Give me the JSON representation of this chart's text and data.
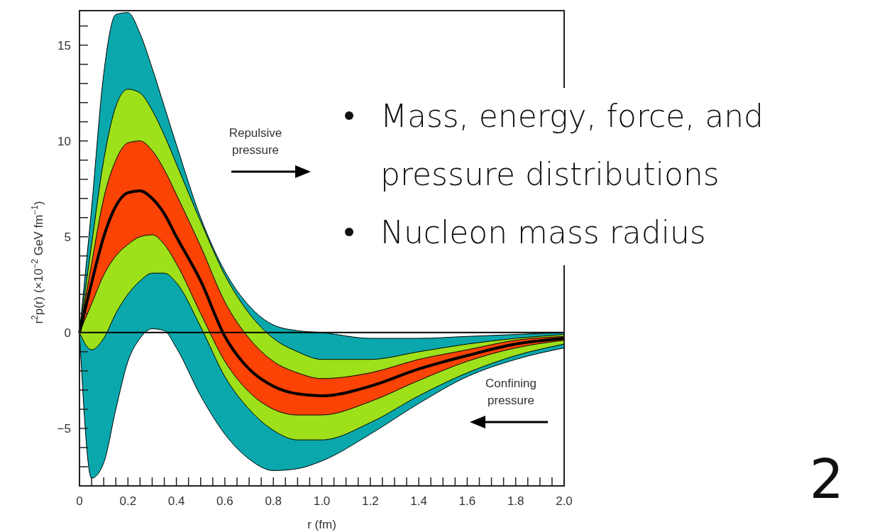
{
  "chart_data": {
    "type": "line",
    "xlabel": "r (fm)",
    "ylabel": "r$^{2}$p(r) (×10$^{−2}$ GeV fm$^{−1}$)",
    "x": [
      0,
      0.05,
      0.1,
      0.15,
      0.2,
      0.25,
      0.3,
      0.35,
      0.4,
      0.5,
      0.6,
      0.7,
      0.8,
      0.9,
      1.0,
      1.2,
      1.4,
      1.6,
      1.8,
      2.0
    ],
    "series": [
      {
        "color": "#0aa8ad",
        "values": [
          null,
          null,
          null,
          null,
          null,
          null,
          null,
          null,
          null,
          null,
          null,
          null,
          null,
          null,
          null,
          null,
          null,
          null,
          null,
          null
        ],
        "upper": [
          0,
          6.5,
          13.5,
          16.6,
          16.7,
          15.6,
          13.8,
          11.8,
          9.8,
          6.0,
          3.2,
          1.4,
          0.4,
          0.1,
          0.0,
          -0.3,
          -0.3,
          -0.2,
          -0.1,
          0
        ],
        "lower": [
          0,
          -7.6,
          -6.8,
          -4.0,
          -1.5,
          -0.3,
          0.2,
          0.1,
          -0.8,
          -3.3,
          -5.3,
          -6.6,
          -7.2,
          -7.1,
          -6.7,
          -5.3,
          -3.7,
          -2.3,
          -1.4,
          -0.8
        ]
      },
      {
        "color": "#9ee01a",
        "values": [
          null,
          null,
          null,
          null,
          null,
          null,
          null,
          null,
          null,
          null,
          null,
          null,
          null,
          null,
          null,
          null,
          null,
          null,
          null,
          null
        ],
        "upper": [
          0,
          4.6,
          9.0,
          11.8,
          12.7,
          12.5,
          11.6,
          10.3,
          8.8,
          5.8,
          3.0,
          1.0,
          -0.3,
          -1.0,
          -1.4,
          -1.4,
          -1.0,
          -0.6,
          -0.3,
          -0.1
        ],
        "lower": [
          0,
          -0.9,
          -0.3,
          1.0,
          2.0,
          2.7,
          3.1,
          3.1,
          2.6,
          0.3,
          -2.3,
          -4.0,
          -5.1,
          -5.6,
          -5.6,
          -4.7,
          -3.3,
          -2.1,
          -1.2,
          -0.6
        ]
      },
      {
        "color": "#fa4305",
        "values": [
          null,
          null,
          null,
          null,
          null,
          null,
          null,
          null,
          null,
          null,
          null,
          null,
          null,
          null,
          null,
          null,
          null,
          null,
          null,
          null
        ],
        "upper": [
          0,
          3.6,
          7.0,
          9.0,
          9.9,
          10.0,
          9.5,
          8.5,
          7.2,
          4.5,
          1.6,
          -0.3,
          -1.5,
          -2.1,
          -2.4,
          -2.1,
          -1.4,
          -0.9,
          -0.4,
          -0.2
        ],
        "lower": [
          0,
          1.5,
          3.0,
          4.0,
          4.6,
          5.0,
          5.1,
          4.6,
          3.6,
          1.0,
          -1.5,
          -3.1,
          -4.0,
          -4.3,
          -4.3,
          -3.6,
          -2.5,
          -1.5,
          -0.8,
          -0.4
        ]
      },
      {
        "color": "#000000",
        "values": [
          0,
          2.6,
          5.0,
          6.6,
          7.3,
          7.4,
          7.0,
          6.2,
          5.0,
          2.7,
          -0.2,
          -1.9,
          -2.8,
          -3.2,
          -3.3,
          -2.8,
          -1.9,
          -1.2,
          -0.6,
          -0.3
        ]
      }
    ],
    "xlim": [
      0,
      2.0
    ],
    "ylim": [
      -8.0,
      16.8
    ],
    "xticks": [
      0,
      {
        "value": 0.05,
        "label": null
      },
      {
        "value": 0.1,
        "label": null
      },
      {
        "value": 0.15,
        "label": null
      },
      0.2,
      {
        "value": 0.25,
        "label": null
      },
      {
        "value": 0.3,
        "label": null
      },
      {
        "value": 0.35,
        "label": null
      },
      0.4,
      {
        "value": 0.45,
        "label": null
      },
      {
        "value": 0.5,
        "label": null
      },
      {
        "value": 0.55,
        "label": null
      },
      0.6,
      {
        "value": 0.65,
        "label": null
      },
      {
        "value": 0.7,
        "label": null
      },
      {
        "value": 0.75,
        "label": null
      },
      0.8,
      {
        "value": 0.85,
        "label": null
      },
      {
        "value": 0.9,
        "label": null
      },
      {
        "value": 0.95,
        "label": null
      },
      {
        "value": 1.0,
        "label": "1.0"
      },
      {
        "value": 1.05,
        "label": null
      },
      {
        "value": 1.1,
        "label": null
      },
      {
        "value": 1.15,
        "label": null
      },
      1.2,
      {
        "value": 1.25,
        "label": null
      },
      {
        "value": 1.3,
        "label": null
      },
      {
        "value": 1.35,
        "label": null
      },
      1.4,
      {
        "value": 1.45,
        "label": null
      },
      {
        "value": 1.5,
        "label": null
      },
      {
        "value": 1.55,
        "label": null
      },
      1.6,
      {
        "value": 1.65,
        "label": null
      },
      {
        "value": 1.7,
        "label": null
      },
      {
        "value": 1.75,
        "label": null
      },
      1.8,
      {
        "value": 1.85,
        "label": null
      },
      {
        "value": 1.9,
        "label": null
      },
      {
        "value": 1.95,
        "label": null
      },
      {
        "value": 2.0,
        "label": "2.0"
      }
    ],
    "yticks": [
      {
        "value": -8,
        "label": null
      },
      {
        "value": -7,
        "label": null
      },
      {
        "value": -6,
        "label": null
      },
      {
        "value": -5,
        "label": "−5"
      },
      {
        "value": -4,
        "label": null
      },
      {
        "value": -3,
        "label": null
      },
      {
        "value": -2,
        "label": null
      },
      {
        "value": -1,
        "label": null
      },
      0,
      {
        "value": 1,
        "label": null
      },
      {
        "value": 2,
        "label": null
      },
      {
        "value": 3,
        "label": null
      },
      {
        "value": 4,
        "label": null
      },
      5,
      {
        "value": 6,
        "label": null
      },
      {
        "value": 7,
        "label": null
      },
      {
        "value": 8,
        "label": null
      },
      {
        "value": 9,
        "label": null
      },
      10,
      {
        "value": 11,
        "label": null
      },
      {
        "value": 12,
        "label": null
      },
      {
        "value": 13,
        "label": null
      },
      {
        "value": 14,
        "label": null
      },
      15,
      {
        "value": 16,
        "label": null
      }
    ],
    "ref_lines": [
      {
        "axis": "y",
        "value": 0,
        "color": "#000000"
      }
    ],
    "grid": false,
    "annotations": [
      "Mass, energy, force, and pressure distributions",
      "Nucleon mass radius",
      "Repulsive pressure",
      "Confining pressure",
      "2"
    ]
  }
}
